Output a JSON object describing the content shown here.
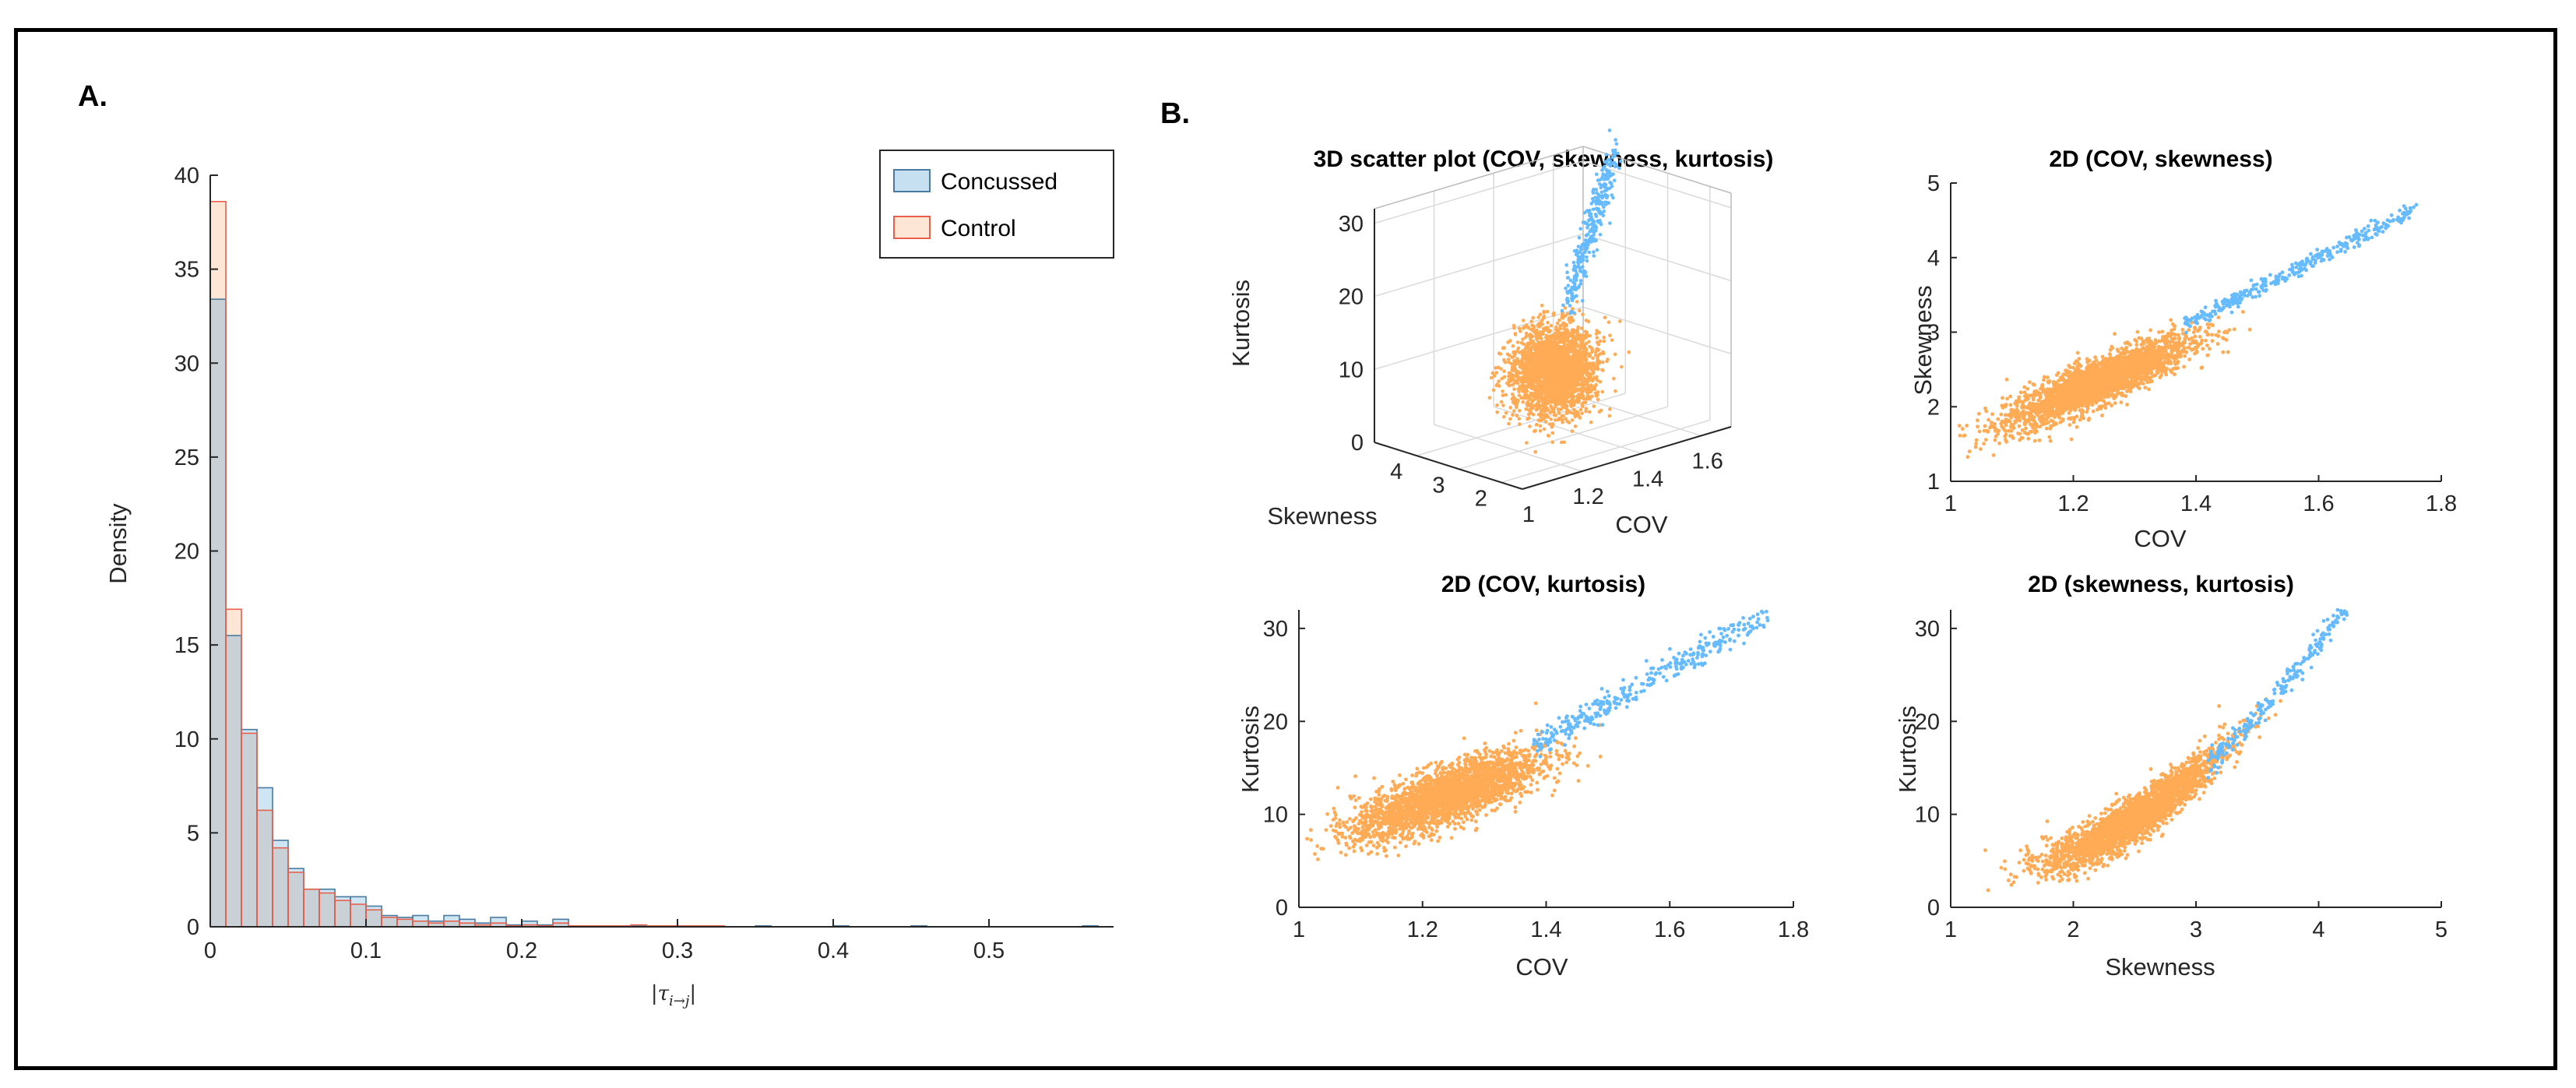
{
  "panel_labels": {
    "a": "A.",
    "b": "B."
  },
  "colors": {
    "concussed": "#66bbff",
    "control": "#ffaa55",
    "concussed_hist": "#c6e0f2",
    "control_hist": "#fde6d5",
    "control_edge": "#e8604c",
    "concussed_edge": "#4a7aa0"
  },
  "chart_data": [
    {
      "type": "bar",
      "id": "histogram",
      "title": "",
      "xlabel": "|τ_{i→j}|",
      "xlabel_parts": {
        "base": "τ",
        "sub": "i→j"
      },
      "ylabel": "Density",
      "xlim": [
        0,
        0.58
      ],
      "ylim": [
        0,
        40
      ],
      "bin_width": 0.01,
      "x_ticks": [
        0,
        0.1,
        0.2,
        0.3,
        0.4,
        0.5
      ],
      "x_tick_labels": [
        "0",
        "0.1",
        "0.2",
        "0.3",
        "0.4",
        "0.5"
      ],
      "y_ticks": [
        0,
        5,
        10,
        15,
        20,
        25,
        30,
        35,
        40
      ],
      "y_tick_labels": [
        "0",
        "5",
        "10",
        "15",
        "20",
        "25",
        "30",
        "35",
        "40"
      ],
      "legend": {
        "position": "top-right",
        "entries": [
          "Concussed",
          "Control"
        ]
      },
      "series": [
        {
          "name": "Concussed",
          "values": [
            33.4,
            15.5,
            10.5,
            7.4,
            4.6,
            3.1,
            2.0,
            2.0,
            1.6,
            1.6,
            1.1,
            0.6,
            0.5,
            0.6,
            0.3,
            0.6,
            0.4,
            0.2,
            0.5,
            0.1,
            0.3,
            0.1,
            0.4,
            0.05,
            0.05,
            0.05,
            0.05,
            0.05,
            0.05,
            0,
            0,
            0,
            0,
            0,
            0,
            0.05,
            0,
            0,
            0,
            0,
            0.05,
            0,
            0,
            0,
            0,
            0.05,
            0,
            0,
            0,
            0,
            0,
            0,
            0,
            0,
            0,
            0,
            0.05
          ]
        },
        {
          "name": "Control",
          "values": [
            38.6,
            16.9,
            10.3,
            6.2,
            4.2,
            2.9,
            2.0,
            1.8,
            1.4,
            1.2,
            0.9,
            0.5,
            0.4,
            0.3,
            0.2,
            0.3,
            0.2,
            0.1,
            0.2,
            0.05,
            0.1,
            0.05,
            0.2,
            0.05,
            0.05,
            0.05,
            0.05,
            0.1,
            0.05,
            0.05,
            0.05,
            0.05,
            0.05,
            0,
            0,
            0,
            0,
            0,
            0,
            0,
            0,
            0,
            0,
            0,
            0,
            0,
            0,
            0,
            0,
            0,
            0,
            0,
            0,
            0,
            0,
            0,
            0
          ]
        }
      ]
    },
    {
      "type": "scatter3d",
      "id": "scatter3d",
      "title": "3D scatter plot (COV, skewness, kurtosis)",
      "xlabel": "COV",
      "ylabel": "Skewness",
      "zlabel": "Kurtosis",
      "xlim": [
        1,
        1.7
      ],
      "ylim": [
        1.5,
        5
      ],
      "zlim": [
        0,
        32
      ],
      "x_ticks": [
        "1",
        "1.2",
        "1.4",
        "1.6"
      ],
      "y_ticks": [
        "2",
        "3",
        "4"
      ],
      "z_ticks": [
        "0",
        "10",
        "20",
        "30"
      ],
      "series": [
        {
          "name": "Control",
          "cov_mean": 1.24,
          "cov_sd": 0.07,
          "skew_mean": 2.45,
          "skew_sd": 0.3,
          "kurt_mean": 11.5,
          "kurt_sd": 3
        },
        {
          "name": "Concussed",
          "cov_range": [
            1.38,
            1.75
          ],
          "skew_range": [
            3.1,
            4.6
          ],
          "kurt_range": [
            18,
            31
          ]
        }
      ]
    },
    {
      "type": "scatter",
      "id": "cov-skew",
      "title": "2D (COV, skewness)",
      "xlabel": "COV",
      "ylabel": "Skewness",
      "xlim": [
        1,
        1.8
      ],
      "ylim": [
        1,
        5
      ],
      "x_ticks": [
        1,
        1.2,
        1.4,
        1.6,
        1.8
      ],
      "x_tick_labels": [
        "1",
        "1.2",
        "1.4",
        "1.6",
        "1.8"
      ],
      "y_ticks": [
        1,
        2,
        3,
        4,
        5
      ],
      "y_tick_labels": [
        "1",
        "2",
        "3",
        "4",
        "5"
      ],
      "series": [
        {
          "name": "Control",
          "x_range": [
            1.0,
            1.52
          ],
          "y_start": 1.5,
          "y_end": 3.3,
          "spread": 0.28
        },
        {
          "name": "Concussed",
          "x_range": [
            1.38,
            1.76
          ],
          "y_start": 3.1,
          "y_end": 4.65,
          "spread": 0.12
        }
      ]
    },
    {
      "type": "scatter",
      "id": "cov-kurt",
      "title": "2D (COV, kurtosis)",
      "xlabel": "COV",
      "ylabel": "Kurtosis",
      "xlim": [
        1,
        1.8
      ],
      "ylim": [
        0,
        32
      ],
      "x_ticks": [
        1,
        1.2,
        1.4,
        1.6,
        1.8
      ],
      "x_tick_labels": [
        "1",
        "1.2",
        "1.4",
        "1.6",
        "1.8"
      ],
      "y_ticks": [
        0,
        10,
        20,
        30
      ],
      "y_tick_labels": [
        "0",
        "10",
        "20",
        "30"
      ],
      "series": [
        {
          "name": "Control",
          "x_range": [
            1.0,
            1.52
          ],
          "y_start": 6.5,
          "y_end": 18.5,
          "spread": 2.8
        },
        {
          "name": "Concussed",
          "x_range": [
            1.38,
            1.76
          ],
          "y_start": 17.5,
          "y_end": 31.5,
          "spread": 1.6
        }
      ]
    },
    {
      "type": "scatter",
      "id": "skew-kurt",
      "title": "2D (skewness, kurtosis)",
      "xlabel": "Skewness",
      "ylabel": "Kurtosis",
      "xlim": [
        1,
        5
      ],
      "ylim": [
        0,
        32
      ],
      "x_ticks": [
        1,
        2,
        3,
        4,
        5
      ],
      "x_tick_labels": [
        "1",
        "2",
        "3",
        "4",
        "5"
      ],
      "y_ticks": [
        0,
        10,
        20,
        30
      ],
      "y_tick_labels": [
        "0",
        "10",
        "20",
        "30"
      ],
      "series": [
        {
          "name": "Control",
          "x_range": [
            1.4,
            3.5
          ],
          "curve": "quadratic",
          "spread": 1.2
        },
        {
          "name": "Concussed",
          "x_range": [
            3.1,
            4.65
          ],
          "curve": "quadratic",
          "spread": 0.6
        }
      ]
    }
  ]
}
